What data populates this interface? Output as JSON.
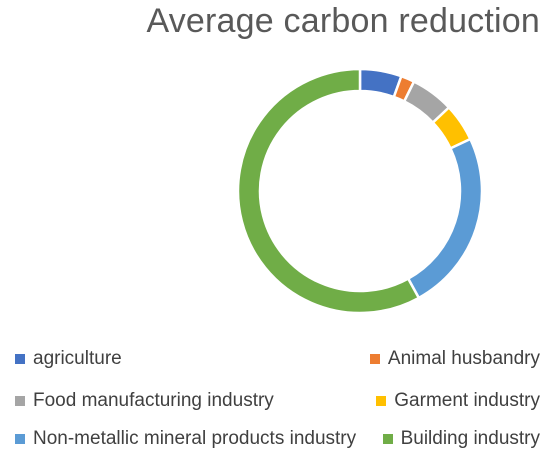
{
  "chart_data": {
    "type": "pie",
    "title": "Average carbon reduction",
    "categories": [
      "agriculture",
      "Animal husbandry",
      "Food manufacturing industry",
      "Garment industry",
      "Non-metallic mineral products industry",
      "Building industry"
    ],
    "values": [
      5.5,
      1.8,
      5.7,
      5.0,
      24.0,
      58.0
    ],
    "colors": [
      "#4472C4",
      "#ED7D31",
      "#A5A5A5",
      "#FFC000",
      "#5B9BD5",
      "#70AD47"
    ],
    "donut": true,
    "legend_position": "bottom"
  }
}
